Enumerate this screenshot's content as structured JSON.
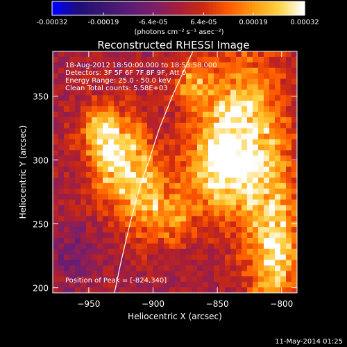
{
  "colorbar": {
    "ticks": [
      {
        "value": -0.00032,
        "label": "-0.00032"
      },
      {
        "value": -0.00019,
        "label": "-0.00019"
      },
      {
        "value": -6.4e-05,
        "label": "-6.4e-05"
      },
      {
        "value": 6.4e-05,
        "label": "6.4e-05"
      },
      {
        "value": 0.00019,
        "label": "0.00019"
      },
      {
        "value": 0.00032,
        "label": "0.00032"
      }
    ],
    "range": [
      -0.00032,
      0.00032
    ],
    "units_label": "(photons cm⁻² s⁻¹ asec⁻²)",
    "colors": [
      "#0000ff",
      "#1e0e7a",
      "#3a1770",
      "#5a1a78",
      "#7a1f6a",
      "#a51e3a",
      "#cc2a12",
      "#ff5a00",
      "#ff9a10",
      "#ffd040",
      "#ffffff"
    ]
  },
  "chart_data": {
    "type": "heatmap",
    "title": "Reconstructed RHESSI Image",
    "xlabel": "Heliocentric X (arcsec)",
    "ylabel": "Heliocentric Y (arcsec)",
    "xlim": [
      -978,
      -788
    ],
    "ylim": [
      196,
      385
    ],
    "xticks": [
      -950,
      -900,
      -850,
      -800
    ],
    "yticks": [
      200,
      250,
      300,
      350
    ],
    "grid": false,
    "annotations": [
      "18-Aug-2012 18:50:00.000 to 18:53:58.000",
      "Detectors: 3F 5F 6F 7F 8F 9F, Att 0",
      "Energy Range: 25.0 - 50.0 keV",
      "Clean     Total counts: 5.58E+03"
    ],
    "peak_label": "Position of Peak = [-824,340]",
    "peak_position": [
      -824,
      340
    ],
    "limb_curve": [
      [
        -930,
        196
      ],
      [
        -925,
        220
      ],
      [
        -918,
        250
      ],
      [
        -910,
        280
      ],
      [
        -903,
        300
      ],
      [
        -895,
        325
      ],
      [
        -885,
        350
      ],
      [
        -875,
        372
      ],
      [
        -869,
        385
      ]
    ],
    "sources": [
      {
        "x": -930,
        "y": 305,
        "sx": 18,
        "sy": 25,
        "amp": 0.0003
      },
      {
        "x": -940,
        "y": 330,
        "sx": 8,
        "sy": 10,
        "amp": 0.00012
      },
      {
        "x": -905,
        "y": 268,
        "sx": 14,
        "sy": 22,
        "amp": 0.00022
      },
      {
        "x": -830,
        "y": 320,
        "sx": 22,
        "sy": 45,
        "amp": 0.0003
      },
      {
        "x": -850,
        "y": 295,
        "sx": 18,
        "sy": 22,
        "amp": 0.00022
      },
      {
        "x": -805,
        "y": 230,
        "sx": 14,
        "sy": 40,
        "amp": 0.00028
      },
      {
        "x": -870,
        "y": 360,
        "sx": 10,
        "sy": 15,
        "amp": 0.00018
      },
      {
        "x": -880,
        "y": 255,
        "sx": 10,
        "sy": 15,
        "amp": 0.00014
      },
      {
        "x": -960,
        "y": 225,
        "sx": 12,
        "sy": 15,
        "amp": -0.0001
      },
      {
        "x": -955,
        "y": 290,
        "sx": 8,
        "sy": 10,
        "amp": -8e-05
      }
    ]
  },
  "footer": {
    "timestamp": "11-May-2014 01:25"
  }
}
